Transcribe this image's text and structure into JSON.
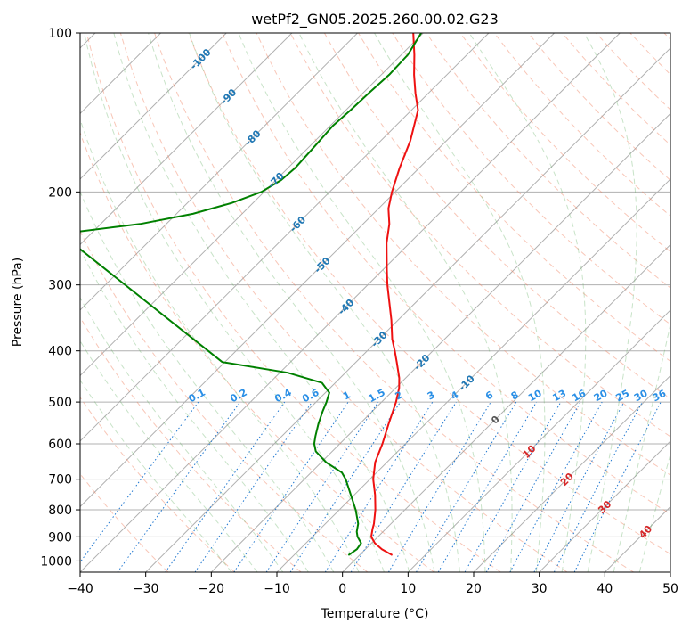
{
  "chart_data": {
    "type": "skew-t",
    "title": "wetPf2_GN05.2025.260.00.02.G23",
    "xlabel": "Temperature (°C)",
    "ylabel": "Pressure (hPa)",
    "xlim": [
      -40,
      50
    ],
    "ylim": [
      1050,
      100
    ],
    "x_ticks": [
      -40,
      -30,
      -20,
      -10,
      0,
      10,
      20,
      30,
      40,
      50
    ],
    "x_tick_labels": [
      "−40",
      "−30",
      "−20",
      "−10",
      "0",
      "10",
      "20",
      "30",
      "40",
      "50"
    ],
    "p_ticks": [
      100,
      200,
      300,
      400,
      500,
      600,
      700,
      800,
      900,
      1000
    ],
    "p_tick_labels": [
      "100",
      "200",
      "300",
      "400",
      "500",
      "600",
      "700",
      "800",
      "900",
      "1000"
    ],
    "isotherm_labels": [
      {
        "text": "-100",
        "p": 112
      },
      {
        "text": "-90",
        "p": 132
      },
      {
        "text": "-80",
        "p": 158
      },
      {
        "text": "-70",
        "p": 190
      },
      {
        "text": "-60",
        "p": 230
      },
      {
        "text": "-50",
        "p": 275
      },
      {
        "text": "-40",
        "p": 330
      },
      {
        "text": "-30",
        "p": 380
      },
      {
        "text": "-20",
        "p": 420
      },
      {
        "text": "-10",
        "p": 460
      },
      {
        "text": "0",
        "p": 540
      },
      {
        "text": "10",
        "p": 620
      },
      {
        "text": "20",
        "p": 700
      },
      {
        "text": "30",
        "p": 790
      },
      {
        "text": "40",
        "p": 880
      }
    ],
    "mixing_ratio_labels": [
      "0.1",
      "0.2",
      "0.4",
      "0.6",
      "1",
      "1.5",
      "2",
      "3",
      "4",
      "6",
      "8",
      "10",
      "13",
      "16",
      "20",
      "25",
      "30",
      "36"
    ],
    "mixing_ratio_label_pressure": 500,
    "series": [
      {
        "name": "Temperature",
        "color": "#ee1111",
        "points": [
          {
            "p": 975,
            "t": 5.0
          },
          {
            "p": 950,
            "t": 2.5
          },
          {
            "p": 925,
            "t": 0.5
          },
          {
            "p": 900,
            "t": -1.0
          },
          {
            "p": 870,
            "t": -2.0
          },
          {
            "p": 850,
            "t": -2.6
          },
          {
            "p": 800,
            "t": -4.5
          },
          {
            "p": 750,
            "t": -6.8
          },
          {
            "p": 700,
            "t": -9.5
          },
          {
            "p": 650,
            "t": -11.8
          },
          {
            "p": 600,
            "t": -13.5
          },
          {
            "p": 550,
            "t": -15.6
          },
          {
            "p": 500,
            "t": -17.8
          },
          {
            "p": 470,
            "t": -19.5
          },
          {
            "p": 450,
            "t": -21.0
          },
          {
            "p": 420,
            "t": -23.8
          },
          {
            "p": 400,
            "t": -25.8
          },
          {
            "p": 380,
            "t": -28.0
          },
          {
            "p": 350,
            "t": -31.0
          },
          {
            "p": 300,
            "t": -37.0
          },
          {
            "p": 280,
            "t": -39.5
          },
          {
            "p": 250,
            "t": -43.5
          },
          {
            "p": 230,
            "t": -46.0
          },
          {
            "p": 215,
            "t": -48.5
          },
          {
            "p": 200,
            "t": -50.5
          },
          {
            "p": 180,
            "t": -53.0
          },
          {
            "p": 160,
            "t": -55.5
          },
          {
            "p": 140,
            "t": -59.0
          },
          {
            "p": 130,
            "t": -62.0
          },
          {
            "p": 120,
            "t": -65.0
          },
          {
            "p": 110,
            "t": -68.0
          },
          {
            "p": 100,
            "t": -71.5
          }
        ]
      },
      {
        "name": "Dewpoint",
        "color": "#008000",
        "points": [
          {
            "p": 975,
            "t": -1.7
          },
          {
            "p": 950,
            "t": -1.3
          },
          {
            "p": 925,
            "t": -1.6
          },
          {
            "p": 900,
            "t": -3.1
          },
          {
            "p": 880,
            "t": -4.0
          },
          {
            "p": 850,
            "t": -5.0
          },
          {
            "p": 800,
            "t": -7.5
          },
          {
            "p": 750,
            "t": -10.5
          },
          {
            "p": 700,
            "t": -13.7
          },
          {
            "p": 680,
            "t": -15.3
          },
          {
            "p": 650,
            "t": -19.3
          },
          {
            "p": 620,
            "t": -22.5
          },
          {
            "p": 600,
            "t": -23.9
          },
          {
            "p": 580,
            "t": -24.9
          },
          {
            "p": 550,
            "t": -26.3
          },
          {
            "p": 520,
            "t": -27.6
          },
          {
            "p": 500,
            "t": -28.4
          },
          {
            "p": 480,
            "t": -29.4
          },
          {
            "p": 460,
            "t": -32.0
          },
          {
            "p": 440,
            "t": -38.8
          },
          {
            "p": 420,
            "t": -50.4
          },
          {
            "p": 240,
            "t": -94.6
          },
          {
            "p": 230,
            "t": -84.0
          },
          {
            "p": 220,
            "t": -77.5
          },
          {
            "p": 210,
            "t": -73.3
          },
          {
            "p": 200,
            "t": -70.4
          },
          {
            "p": 190,
            "t": -69.2
          },
          {
            "p": 180,
            "t": -68.9
          },
          {
            "p": 165,
            "t": -69.2
          },
          {
            "p": 150,
            "t": -69.6
          },
          {
            "p": 140,
            "t": -69.3
          },
          {
            "p": 130,
            "t": -69.1
          },
          {
            "p": 120,
            "t": -68.8
          },
          {
            "p": 110,
            "t": -69.0
          },
          {
            "p": 100,
            "t": -70.3
          }
        ]
      }
    ]
  }
}
